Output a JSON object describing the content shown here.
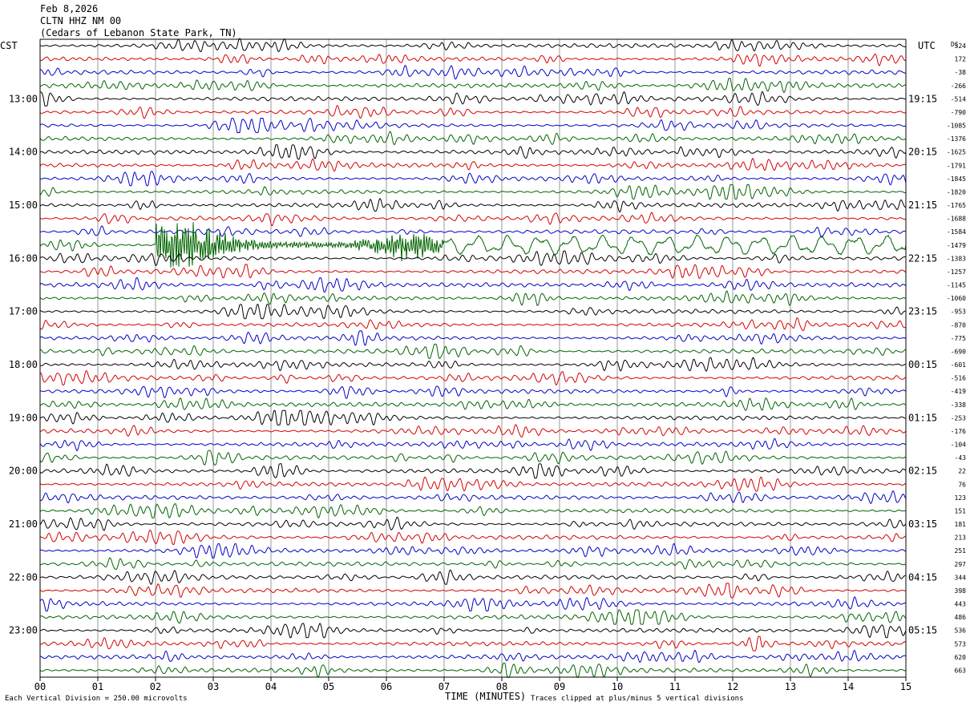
{
  "header": {
    "date": "Feb 8,2026",
    "station": "CLTN HHZ NM 00",
    "site": "(Cedars of Lebanon State Park, TN)"
  },
  "chart_data": {
    "type": "line",
    "title": "",
    "left_zone_label": "CST",
    "right_zone_label": "UTC",
    "dc_label": "DC",
    "xlabel": "TIME (MINUTES)",
    "x_ticks": [
      "00",
      "01",
      "02",
      "03",
      "04",
      "05",
      "06",
      "07",
      "08",
      "09",
      "10",
      "11",
      "12",
      "13",
      "14",
      "15"
    ],
    "x_range": [
      0,
      15
    ],
    "traces_per_hour": 4,
    "trace_colors": [
      "#000000",
      "#d40000",
      "#0000c8",
      "#006400"
    ],
    "left_hour_labels": [
      {
        "trace": 4,
        "text": "13:00"
      },
      {
        "trace": 8,
        "text": "14:00"
      },
      {
        "trace": 12,
        "text": "15:00"
      },
      {
        "trace": 16,
        "text": "16:00"
      },
      {
        "trace": 20,
        "text": "17:00"
      },
      {
        "trace": 24,
        "text": "18:00"
      },
      {
        "trace": 28,
        "text": "19:00"
      },
      {
        "trace": 32,
        "text": "20:00"
      },
      {
        "trace": 36,
        "text": "21:00"
      },
      {
        "trace": 40,
        "text": "22:00"
      },
      {
        "trace": 44,
        "text": "23:00"
      }
    ],
    "right_hour_labels": [
      {
        "trace": 4,
        "text": "19:15"
      },
      {
        "trace": 8,
        "text": "20:15"
      },
      {
        "trace": 12,
        "text": "21:15"
      },
      {
        "trace": 16,
        "text": "22:15"
      },
      {
        "trace": 20,
        "text": "23:15"
      },
      {
        "trace": 24,
        "text": "00:15"
      },
      {
        "trace": 28,
        "text": "01:15"
      },
      {
        "trace": 32,
        "text": "02:15"
      },
      {
        "trace": 36,
        "text": "03:15"
      },
      {
        "trace": 40,
        "text": "04:15"
      },
      {
        "trace": 44,
        "text": "05:15"
      }
    ],
    "dc_offsets": [
      "324",
      "172",
      "-38",
      "-266",
      "-514",
      "-790",
      "-1085",
      "-1376",
      "-1625",
      "-1791",
      "-1845",
      "-1820",
      "-1765",
      "-1688",
      "-1584",
      "-1479",
      "-1383",
      "-1257",
      "-1145",
      "-1060",
      "-953",
      "-870",
      "-775",
      "-690",
      "-601",
      "-516",
      "-419",
      "-338",
      "-253",
      "-176",
      "-104",
      "-43",
      "22",
      "76",
      "123",
      "151",
      "181",
      "213",
      "251",
      "297",
      "344",
      "398",
      "443",
      "486",
      "536",
      "573",
      "620",
      "663"
    ],
    "event": {
      "trace": 15,
      "start_minute": 2.0,
      "end_minute": 7.0,
      "description": "large-amplitude signal on green trace"
    },
    "footer_left": "Each Vertical Division =  250.00 microvolts",
    "footer_right": "Traces clipped at plus/minus 5 vertical divisions"
  }
}
